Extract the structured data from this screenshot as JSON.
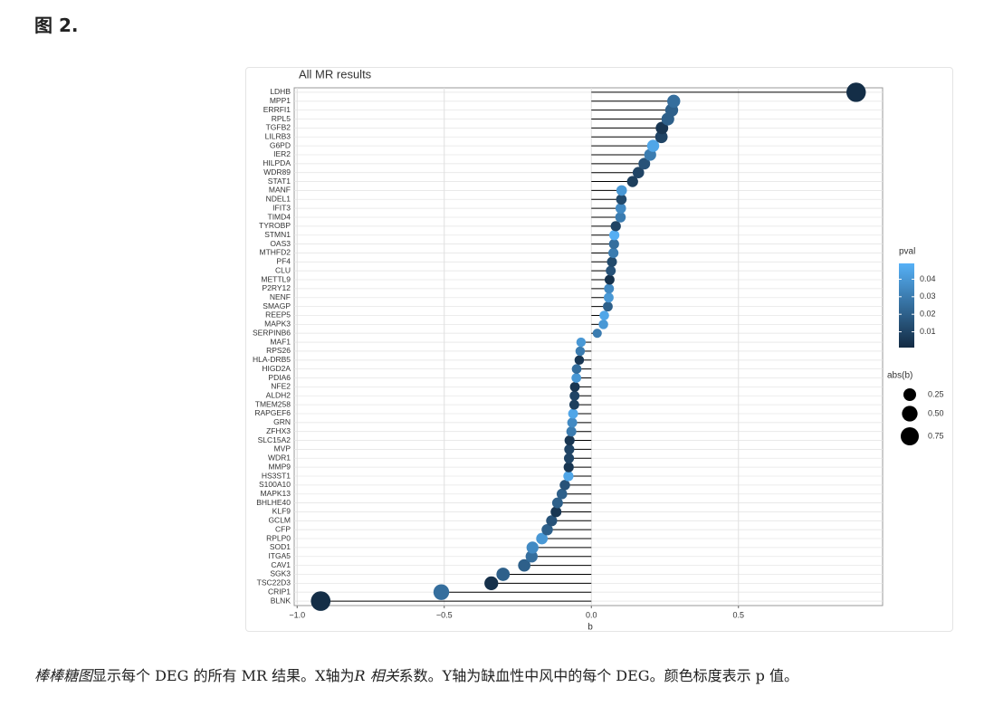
{
  "header": {
    "title": "图 2."
  },
  "caption": [
    "棒棒糖图",
    "显示每个 DEG 的所有 MR 结果。X轴为",
    "R 相关",
    "系数。Y轴为缺血性中风中的每个 DEG。颜色标度表示 p 值。"
  ],
  "chart_data": {
    "type": "lollipop",
    "title": "All MR results",
    "x_label": "b",
    "categories": [
      "LDHB",
      "MPP1",
      "ERRFI1",
      "RPL5",
      "TGFB2",
      "LILRB3",
      "G6PD",
      "IER2",
      "HILPDA",
      "WDR89",
      "STAT1",
      "MANF",
      "NDEL1",
      "IFIT3",
      "TIMD4",
      "TYROBP",
      "STMN1",
      "OAS3",
      "MTHFD2",
      "PF4",
      "CLU",
      "METTL9",
      "P2RY12",
      "NENF",
      "SMAGP",
      "REEP5",
      "MAPK3",
      "SERPINB6",
      "MAF1",
      "RPS26",
      "HLA-DRB5",
      "HIGD2A",
      "PDIA6",
      "NFE2",
      "ALDH2",
      "TMEM258",
      "RAPGEF6",
      "GRN",
      "ZFHX3",
      "SLC15A2",
      "MVP",
      "WDR1",
      "MMP9",
      "HS3ST1",
      "S100A10",
      "MAPK13",
      "BHLHE40",
      "KLF9",
      "GCLM",
      "CFP",
      "RPLP0",
      "SOD1",
      "ITGA5",
      "CAV1",
      "SGK3",
      "TSC22D3",
      "CRIP1",
      "BLNK"
    ],
    "values": [
      0.9,
      0.28,
      0.273,
      0.26,
      0.24,
      0.238,
      0.21,
      0.2,
      0.18,
      0.16,
      0.14,
      0.103,
      0.102,
      0.1,
      0.099,
      0.083,
      0.078,
      0.077,
      0.075,
      0.07,
      0.066,
      0.062,
      0.06,
      0.059,
      0.056,
      0.044,
      0.041,
      0.02,
      -0.035,
      -0.038,
      -0.041,
      -0.05,
      -0.051,
      -0.056,
      -0.057,
      -0.058,
      -0.062,
      -0.065,
      -0.068,
      -0.074,
      -0.075,
      -0.076,
      -0.077,
      -0.078,
      -0.09,
      -0.1,
      -0.115,
      -0.12,
      -0.135,
      -0.15,
      -0.168,
      -0.2,
      -0.203,
      -0.228,
      -0.3,
      -0.34,
      -0.51,
      -0.92
    ],
    "pvals": [
      0.002,
      0.025,
      0.02,
      0.02,
      0.005,
      0.01,
      0.045,
      0.03,
      0.015,
      0.01,
      0.008,
      0.04,
      0.012,
      0.035,
      0.03,
      0.01,
      0.048,
      0.025,
      0.03,
      0.012,
      0.015,
      0.003,
      0.035,
      0.04,
      0.02,
      0.045,
      0.04,
      0.03,
      0.04,
      0.03,
      0.005,
      0.025,
      0.04,
      0.005,
      0.01,
      0.008,
      0.045,
      0.035,
      0.03,
      0.005,
      0.01,
      0.01,
      0.005,
      0.045,
      0.015,
      0.02,
      0.02,
      0.005,
      0.015,
      0.02,
      0.04,
      0.035,
      0.025,
      0.02,
      0.02,
      0.003,
      0.025,
      0.002
    ],
    "xlim": [
      -1.01,
      0.99
    ],
    "xticks": [
      {
        "value": -1,
        "label": "−1.0"
      },
      {
        "value": -0.5,
        "label": "−0.5"
      },
      {
        "value": 0,
        "label": "0.0"
      },
      0.5
    ],
    "grid": true,
    "stick_color": "#000000",
    "color_legend": {
      "title": "pval",
      "lim": [
        0.001,
        0.049
      ],
      "ticks": [
        0.01,
        0.02,
        0.03,
        0.04
      ],
      "low": "#132B43",
      "high": "#56B1F7"
    },
    "size_legend": {
      "title": "abs(b)",
      "values": [
        0.25,
        {
          "value": 0.5,
          "label": "0.50"
        },
        0.75
      ],
      "color": "#000000"
    }
  }
}
